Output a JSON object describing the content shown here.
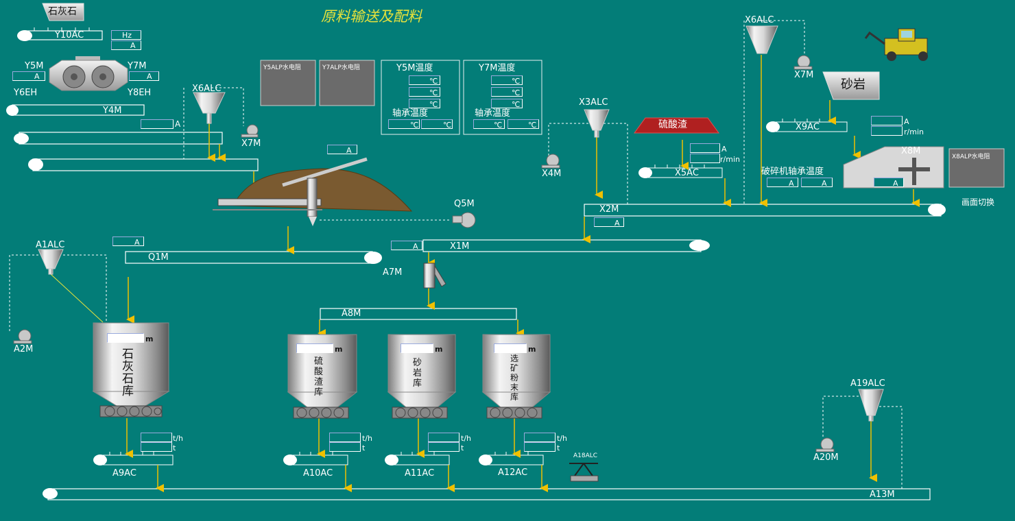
{
  "title": "原料输送及配料",
  "screen_switch": "画面切换",
  "hoppers": {
    "limestone": "石灰石",
    "sandstone": "砂岩",
    "sulfur_slag": "硫酸渣"
  },
  "labels": {
    "y10ac": "Y10AC",
    "hz": "Hz",
    "a": "A",
    "y5m": "Y5M",
    "y7m_left": "Y7M",
    "y6eh": "Y6EH",
    "y8eh": "Y8EH",
    "y4m": "Y4M",
    "x6alc_left": "X6ALC",
    "x7m_left": "X7M",
    "y5alp": "Y5ALP水电阻",
    "y7alp": "Y7ALP水电阻",
    "q5m": "Q5M",
    "a1alc": "A1ALC",
    "q1m": "Q1M",
    "a2m": "A2M",
    "a7m": "A7M",
    "x1m": "X1M",
    "a8m": "A8M",
    "x3alc": "X3ALC",
    "x4m": "X4M",
    "x5ac": "X5AC",
    "x2m": "X2M",
    "x6alc_right": "X6ALC",
    "x7m_right": "X7M",
    "x9ac": "X9AC",
    "x8m": "X8M",
    "x8alp": "X8ALP水电阻",
    "crusher_bearing": "破碎机轴承温度",
    "r_min": "r/min",
    "a9ac": "A9AC",
    "a10ac": "A10AC",
    "a11ac": "A11AC",
    "a12ac": "A12AC",
    "a18alc": "A18ALC",
    "a19alc": "A19ALC",
    "a20m": "A20M",
    "a13m": "A13M",
    "th": "t/h",
    "t": "t",
    "m": "m",
    "deg": "℃"
  },
  "temp_panels": {
    "y5m_temp": "Y5M温度",
    "y7m_temp": "Y7M温度",
    "bearing_temp": "轴承温度"
  },
  "silos": {
    "limestone": "石灰石库",
    "sulfur_slag": "硫酸渣库",
    "sandstone": "砂岩库",
    "ore_powder": "选矿粉末库"
  },
  "colors": {
    "background": "#037d78",
    "arrow": "#f0c000",
    "title": "#e7e23c",
    "slag": "#b02020"
  }
}
